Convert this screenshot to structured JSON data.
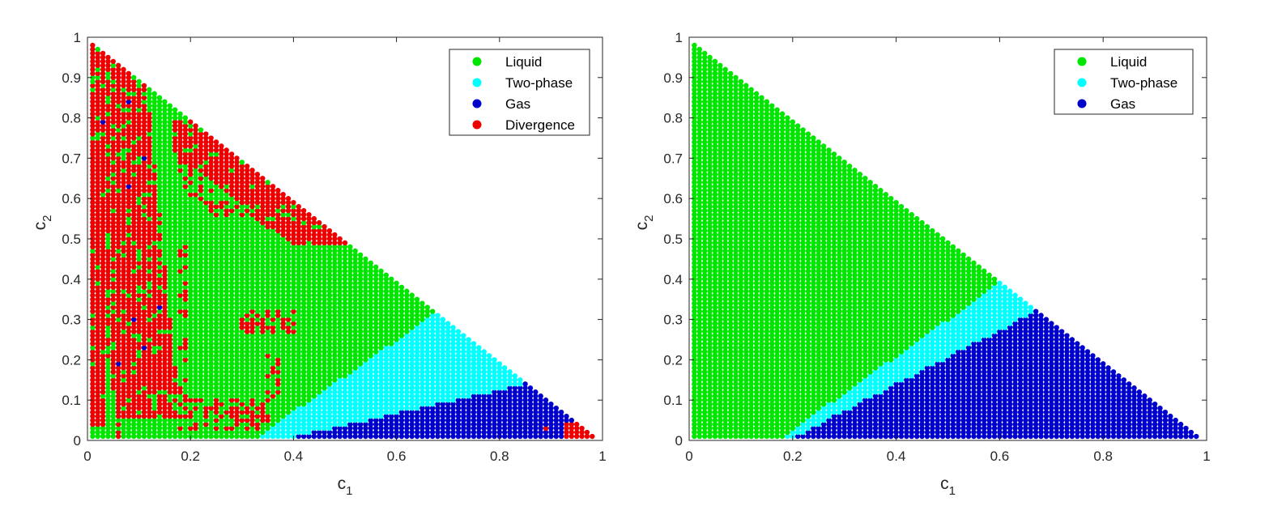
{
  "chart_data": [
    {
      "type": "scatter",
      "xlabel": "c",
      "xlabel_sub": "1",
      "ylabel": "c",
      "ylabel_sub": "2",
      "xlim": [
        0,
        1
      ],
      "ylim": [
        0,
        1
      ],
      "x_ticks": [
        "0",
        "0.2",
        "0.4",
        "0.6",
        "0.8",
        "1"
      ],
      "y_ticks": [
        "0",
        "0.1",
        "0.2",
        "0.3",
        "0.4",
        "0.5",
        "0.6",
        "0.7",
        "0.8",
        "0.9",
        "1"
      ],
      "grid": false,
      "legend_position": "top-right",
      "grid_step": 0.01,
      "domain": "c1 + c2 <= 0.99, c1 >= 0.01, c2 >= 0.01",
      "series": [
        {
          "name": "Liquid",
          "color": "#00e600"
        },
        {
          "name": "Two-phase",
          "color": "#00ffff"
        },
        {
          "name": "Gas",
          "color": "#0000cc"
        },
        {
          "name": "Divergence",
          "color": "#ee0000"
        }
      ],
      "region_boundaries": {
        "two_phase_from_liquid": {
          "c1": [
            0.32,
            0.68
          ],
          "c2": [
            0.0,
            0.32
          ]
        },
        "gas_from_two_phase": {
          "c1": [
            0.37,
            0.85
          ],
          "c2": [
            0.0,
            0.14
          ]
        }
      },
      "divergence_regions": [
        {
          "region": "left vertical band",
          "c1": [
            0.01,
            0.18
          ],
          "c2": [
            0.03,
            0.98
          ]
        },
        {
          "region": "near hypotenuse band",
          "c1": [
            0.17,
            0.5
          ],
          "c2": [
            0.48,
            0.8
          ]
        },
        {
          "region": "interior patch",
          "c1": [
            0.29,
            0.42
          ],
          "c2": [
            0.26,
            0.33
          ]
        },
        {
          "region": "bottom patch",
          "c1": [
            0.18,
            0.36
          ],
          "c2": [
            0.02,
            0.12
          ]
        },
        {
          "region": "bottom-right corner",
          "c1": [
            0.93,
            0.98
          ],
          "c2": [
            0.01,
            0.04
          ]
        }
      ]
    },
    {
      "type": "scatter",
      "xlabel": "c",
      "xlabel_sub": "1",
      "ylabel": "c",
      "ylabel_sub": "2",
      "xlim": [
        0,
        1
      ],
      "ylim": [
        0,
        1
      ],
      "x_ticks": [
        "0",
        "0.2",
        "0.4",
        "0.6",
        "0.8",
        "1"
      ],
      "y_ticks": [
        "0",
        "0.1",
        "0.2",
        "0.3",
        "0.4",
        "0.5",
        "0.6",
        "0.7",
        "0.8",
        "0.9",
        "1"
      ],
      "grid": false,
      "legend_position": "top-right",
      "grid_step": 0.01,
      "domain": "c1 + c2 <= 0.99, c1 >= 0.01, c2 >= 0.01",
      "series": [
        {
          "name": "Liquid",
          "color": "#00e600"
        },
        {
          "name": "Two-phase",
          "color": "#00ffff"
        },
        {
          "name": "Gas",
          "color": "#0000cc"
        }
      ],
      "region_boundaries": {
        "two_phase_from_liquid": {
          "c1": [
            0.17,
            0.6
          ],
          "c2": [
            0.0,
            0.39
          ]
        },
        "gas_from_two_phase": {
          "c1": [
            0.19,
            0.67
          ],
          "c2": [
            0.0,
            0.32
          ]
        }
      }
    }
  ]
}
